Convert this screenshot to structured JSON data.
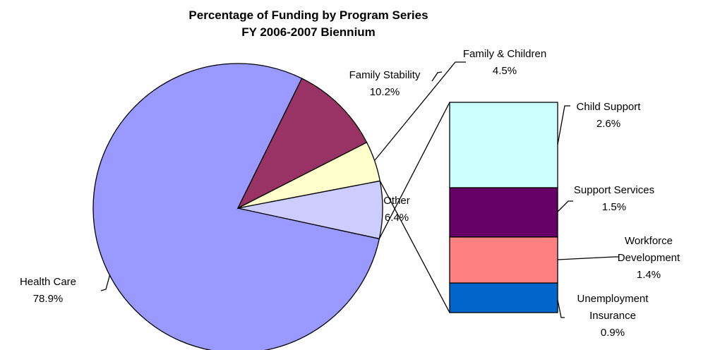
{
  "chart_data": {
    "type": "pie-of-bar",
    "title": "Percentage of Funding by Program Series",
    "subtitle": "FY 2006-2007 Biennium",
    "categories": [
      "Health Care",
      "Family Stability",
      "Family & Children",
      "Other"
    ],
    "values": [
      78.9,
      10.2,
      4.5,
      6.4
    ],
    "value_labels": [
      "78.9%",
      "10.2%",
      "4.5%",
      "6.4%"
    ],
    "colors": [
      "#9999ff",
      "#993366",
      "#ffffcc",
      "#ccccff"
    ],
    "bar": {
      "categories": [
        "Child Support",
        "Support Services",
        "Workforce Development",
        "Unemployment Insurance"
      ],
      "values": [
        2.6,
        1.5,
        1.4,
        0.9
      ],
      "value_labels": [
        "2.6%",
        "1.5%",
        "1.4%",
        "0.9%"
      ],
      "colors": [
        "#ccffff",
        "#660066",
        "#ff8080",
        "#0066cc"
      ]
    }
  }
}
